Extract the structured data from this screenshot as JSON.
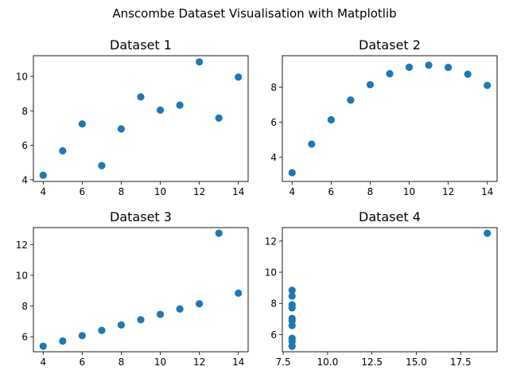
{
  "figure": {
    "suptitle": "Anscombe Dataset Visualisation with Matplotlib",
    "marker_color": "#1f77b4"
  },
  "chart_data": [
    {
      "type": "scatter",
      "title": "Dataset 1",
      "x": [
        10,
        8,
        13,
        9,
        11,
        14,
        6,
        4,
        12,
        7,
        5
      ],
      "y": [
        8.04,
        6.95,
        7.58,
        8.81,
        8.33,
        9.96,
        7.24,
        4.26,
        10.84,
        4.82,
        5.68
      ],
      "xlim": [
        3.5,
        14.5
      ],
      "ylim": [
        3.9,
        11.2
      ],
      "xticks": [
        4,
        6,
        8,
        10,
        12,
        14
      ],
      "xtick_labels": [
        "4",
        "6",
        "8",
        "10",
        "12",
        "14"
      ],
      "yticks": [
        4,
        6,
        8,
        10
      ],
      "ytick_labels": [
        "4",
        "6",
        "8",
        "10"
      ]
    },
    {
      "type": "scatter",
      "title": "Dataset 2",
      "x": [
        10,
        8,
        13,
        9,
        11,
        14,
        6,
        4,
        12,
        7,
        5
      ],
      "y": [
        9.14,
        8.14,
        8.74,
        8.77,
        9.26,
        8.1,
        6.13,
        3.1,
        9.13,
        7.26,
        4.74
      ],
      "xlim": [
        3.5,
        14.5
      ],
      "ylim": [
        2.6,
        9.8
      ],
      "xticks": [
        4,
        6,
        8,
        10,
        12,
        14
      ],
      "xtick_labels": [
        "4",
        "6",
        "8",
        "10",
        "12",
        "14"
      ],
      "yticks": [
        4,
        6,
        8
      ],
      "ytick_labels": [
        "4",
        "6",
        "8"
      ]
    },
    {
      "type": "scatter",
      "title": "Dataset 3",
      "x": [
        10,
        8,
        13,
        9,
        11,
        14,
        6,
        4,
        12,
        7,
        5
      ],
      "y": [
        7.46,
        6.77,
        12.74,
        7.11,
        7.81,
        8.84,
        6.08,
        5.39,
        8.15,
        6.42,
        5.73
      ],
      "xlim": [
        3.5,
        14.5
      ],
      "ylim": [
        5.03,
        13.1
      ],
      "xticks": [
        4,
        6,
        8,
        10,
        12,
        14
      ],
      "xtick_labels": [
        "4",
        "6",
        "8",
        "10",
        "12",
        "14"
      ],
      "yticks": [
        6,
        8,
        10,
        12
      ],
      "ytick_labels": [
        "6",
        "8",
        "10",
        "12"
      ]
    },
    {
      "type": "scatter",
      "title": "Dataset 4",
      "x": [
        8,
        8,
        8,
        8,
        8,
        8,
        8,
        19,
        8,
        8,
        8
      ],
      "y": [
        6.58,
        5.76,
        7.71,
        8.84,
        8.47,
        7.04,
        5.25,
        12.5,
        5.56,
        7.91,
        6.89
      ],
      "xlim": [
        7.45,
        19.55
      ],
      "ylim": [
        4.9,
        12.86
      ],
      "xticks": [
        7.5,
        10.0,
        12.5,
        15.0,
        17.5
      ],
      "xtick_labels": [
        "7.5",
        "10.0",
        "12.5",
        "15.0",
        "17.5"
      ],
      "yticks": [
        6,
        8,
        10,
        12
      ],
      "ytick_labels": [
        "6",
        "8",
        "10",
        "12"
      ]
    }
  ]
}
